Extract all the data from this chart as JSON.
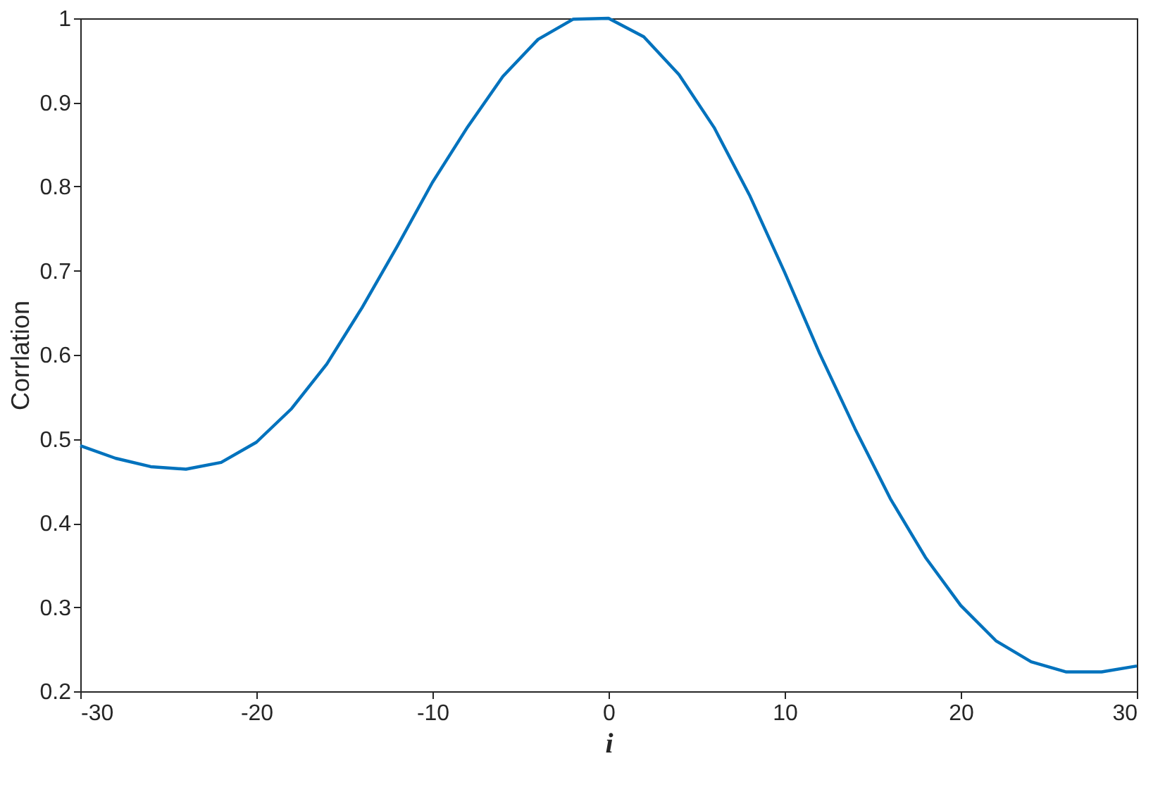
{
  "chart_data": {
    "type": "line",
    "xlabel": "i",
    "ylabel": "Corrlation",
    "x": [
      -30,
      -28,
      -26,
      -24,
      -22,
      -20,
      -18,
      -16,
      -14,
      -12,
      -10,
      -8,
      -6,
      -4,
      -2,
      0,
      2,
      4,
      6,
      8,
      10,
      12,
      14,
      16,
      18,
      20,
      22,
      24,
      26,
      28,
      30
    ],
    "series": [
      {
        "color": "#0072bd",
        "values": [
          0.492,
          0.477,
          0.467,
          0.464,
          0.472,
          0.496,
          0.536,
          0.589,
          0.656,
          0.729,
          0.805,
          0.871,
          0.931,
          0.975,
          0.999,
          1.0,
          0.978,
          0.933,
          0.87,
          0.79,
          0.698,
          0.601,
          0.512,
          0.429,
          0.359,
          0.302,
          0.26,
          0.235,
          0.223,
          0.223,
          0.23
        ]
      }
    ],
    "xlim": [
      -30,
      30
    ],
    "xticks": [
      -30,
      -20,
      -10,
      0,
      10,
      20,
      30
    ],
    "ylim": [
      0.2,
      1
    ],
    "yticks": [
      0.2,
      0.3,
      0.4,
      0.5,
      0.6,
      0.7,
      0.8,
      0.9,
      1
    ],
    "grid": false,
    "marker": "none",
    "line_style": "solid"
  }
}
